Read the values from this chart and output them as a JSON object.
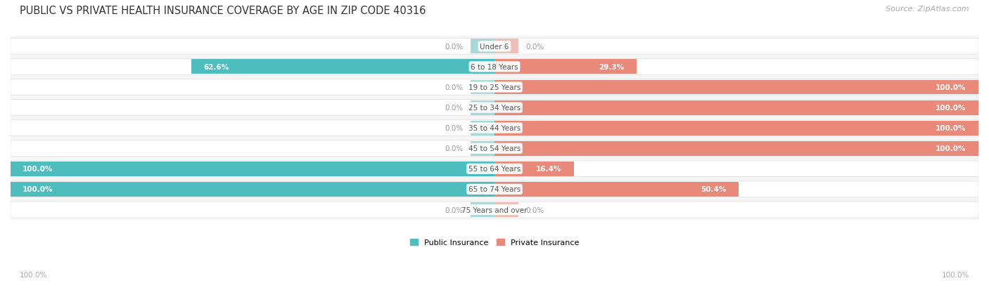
{
  "title": "PUBLIC VS PRIVATE HEALTH INSURANCE COVERAGE BY AGE IN ZIP CODE 40316",
  "source": "Source: ZipAtlas.com",
  "categories": [
    "Under 6",
    "6 to 18 Years",
    "19 to 25 Years",
    "25 to 34 Years",
    "35 to 44 Years",
    "45 to 54 Years",
    "55 to 64 Years",
    "65 to 74 Years",
    "75 Years and over"
  ],
  "public_values": [
    0.0,
    62.6,
    0.0,
    0.0,
    0.0,
    0.0,
    100.0,
    100.0,
    0.0
  ],
  "private_values": [
    0.0,
    29.3,
    100.0,
    100.0,
    100.0,
    100.0,
    16.4,
    50.4,
    0.0
  ],
  "public_color": "#4dbdbe",
  "private_color": "#e8897a",
  "public_stub_color": "#a8d8d9",
  "private_stub_color": "#f0c0b8",
  "row_bg_color": "#f0f0f0",
  "row_border_color": "#e0e0e0",
  "title_color": "#333333",
  "category_label_color": "#555555",
  "value_inside_color": "#ffffff",
  "value_outside_color": "#999999",
  "legend_public": "Public Insurance",
  "legend_private": "Private Insurance",
  "title_fontsize": 10.5,
  "source_fontsize": 8,
  "category_fontsize": 7.5,
  "value_fontsize": 7.5,
  "legend_fontsize": 8,
  "axis_label_fontsize": 7.5,
  "figsize": [
    14.06,
    4.14
  ],
  "dpi": 100
}
